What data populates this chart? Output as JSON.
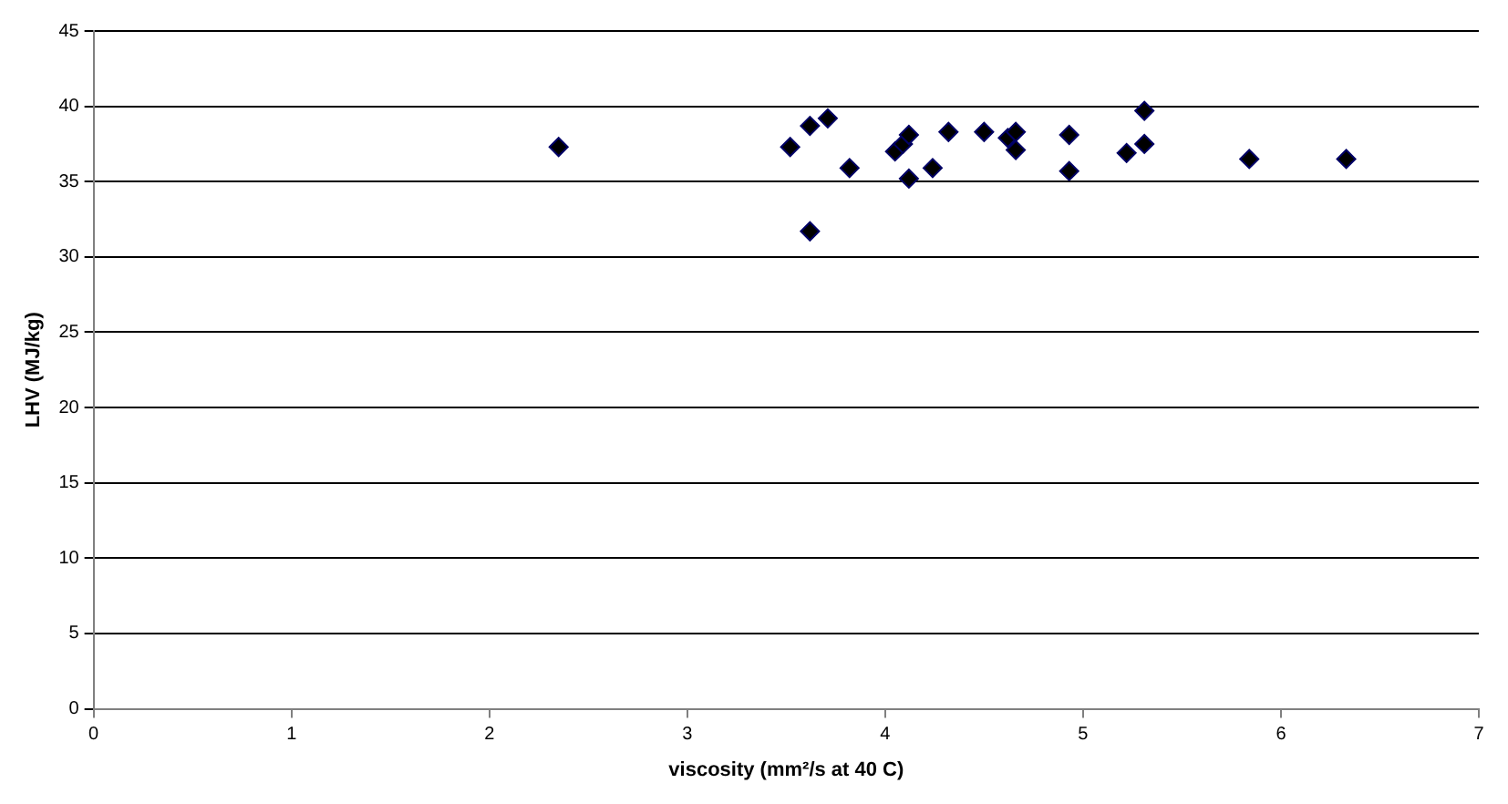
{
  "chart_data": {
    "type": "scatter",
    "xlabel": "viscosity (mm²/s at 40 C)",
    "ylabel": "LHV (MJ/kg)",
    "x": [
      2.35,
      3.52,
      3.62,
      3.71,
      3.82,
      3.62,
      4.05,
      4.09,
      4.12,
      4.12,
      4.24,
      4.32,
      4.5,
      4.62,
      4.66,
      4.66,
      4.93,
      4.93,
      5.22,
      5.31,
      5.31,
      5.84,
      6.33
    ],
    "series": [
      {
        "color": "#000066",
        "values": [
          37.3,
          37.3,
          38.7,
          39.2,
          35.9,
          31.7,
          37.0,
          37.5,
          38.1,
          35.2,
          35.9,
          38.3,
          38.3,
          37.9,
          38.3,
          37.1,
          38.1,
          35.7,
          36.9,
          37.5,
          39.7,
          36.5,
          36.5
        ]
      }
    ],
    "xlim": [
      0,
      7
    ],
    "xticks": [
      0,
      1,
      2,
      3,
      4,
      5,
      6,
      7
    ],
    "ylim": [
      0,
      45
    ],
    "yticks": [
      0,
      5,
      10,
      15,
      20,
      25,
      30,
      35,
      40,
      45
    ],
    "grid": "y",
    "legend": false,
    "marker": "diamond"
  }
}
